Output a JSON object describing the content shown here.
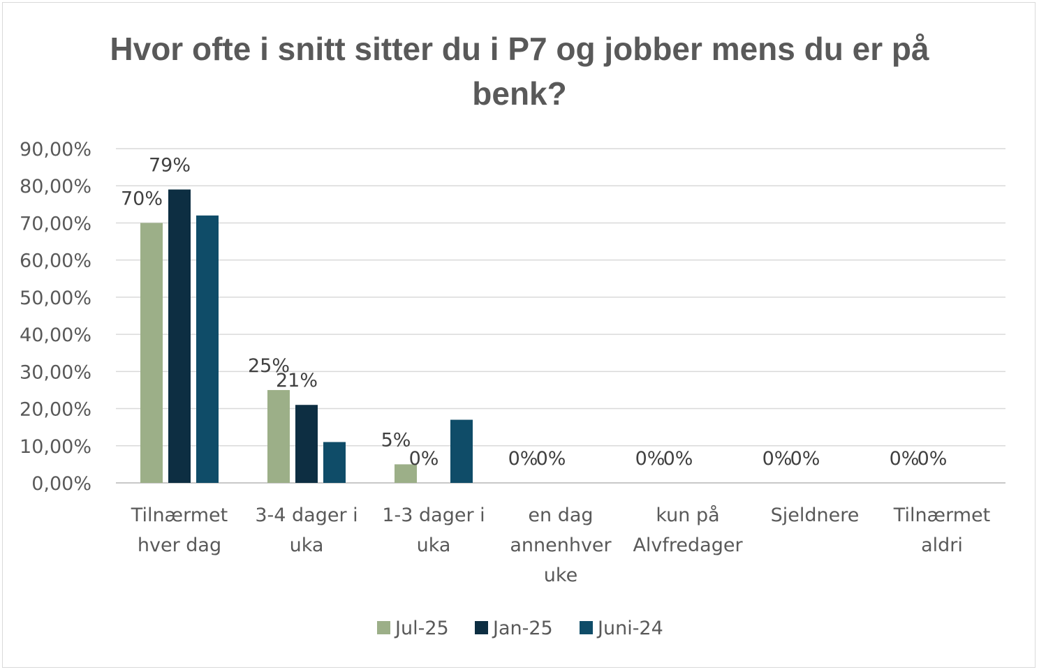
{
  "chart_data": {
    "type": "bar",
    "title": "Hvor ofte i snitt sitter du i P7 og jobber mens du er på benk?",
    "categories": [
      [
        "Tilnærmet",
        "hver dag"
      ],
      [
        "3-4 dager i",
        "uka"
      ],
      [
        "1-3 dager i",
        "uka"
      ],
      [
        "en dag",
        "annenhver",
        "uke"
      ],
      [
        "kun på",
        "Alvfredager"
      ],
      [
        "Sjeldnere"
      ],
      [
        "Tilnærmet",
        "aldri"
      ]
    ],
    "series": [
      {
        "name": "Jul-25",
        "color": "#9caf88",
        "values": [
          70,
          25,
          5,
          0,
          0,
          0,
          0
        ],
        "labels": [
          "70%",
          "25%",
          "5%",
          "0%",
          "0%",
          "0%",
          "0%"
        ]
      },
      {
        "name": "Jan-25",
        "color": "#0d2e42",
        "values": [
          79,
          21,
          0,
          0,
          0,
          0,
          0
        ],
        "labels": [
          "79%",
          "21%",
          "0%",
          "0%",
          "0%",
          "0%",
          "0%"
        ]
      },
      {
        "name": "Juni-24",
        "color": "#0f4c68",
        "values": [
          72,
          11,
          17,
          0,
          0,
          0,
          0
        ],
        "labels": []
      }
    ],
    "y_ticks": [
      "0,00%",
      "10,00%",
      "20,00%",
      "30,00%",
      "40,00%",
      "50,00%",
      "60,00%",
      "70,00%",
      "80,00%",
      "90,00%"
    ],
    "ylim": [
      0,
      90
    ],
    "grid": true,
    "legend_position": "bottom"
  }
}
